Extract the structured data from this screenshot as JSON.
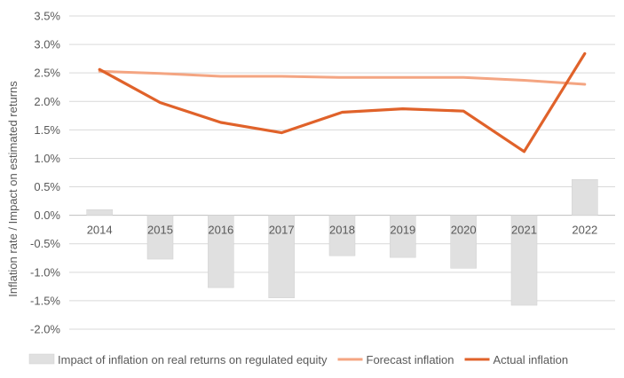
{
  "chart_data": {
    "type": "bar+line",
    "ylabel": "Inflation rate  /  Impact on estimated returns",
    "ylim": [
      -2.0,
      3.5
    ],
    "ytick_step": 0.5,
    "ytick_labels": [
      "3.5%",
      "3.0%",
      "2.5%",
      "2.0%",
      "1.5%",
      "1.0%",
      "0.5%",
      "0.0%",
      "-0.5%",
      "-1.0%",
      "-1.5%",
      "-2.0%"
    ],
    "grid": true,
    "legend_position": "bottom",
    "categories": [
      "2014",
      "2015",
      "2016",
      "2017",
      "2018",
      "2019",
      "2020",
      "2021",
      "2022"
    ],
    "series": [
      {
        "name": "Impact of inflation on real returns on regulated equity",
        "kind": "bar",
        "color": "#e0e0e0",
        "values": [
          0.1,
          -0.77,
          -1.27,
          -1.45,
          -0.71,
          -0.74,
          -0.93,
          -1.58,
          0.63
        ]
      },
      {
        "name": "Forecast inflation",
        "kind": "line",
        "color": "#f4a582",
        "values": [
          2.53,
          2.49,
          2.44,
          2.44,
          2.42,
          2.42,
          2.42,
          2.37,
          2.3
        ]
      },
      {
        "name": "Actual inflation",
        "kind": "line",
        "color": "#e0622a",
        "values": [
          2.56,
          1.98,
          1.63,
          1.45,
          1.81,
          1.87,
          1.83,
          1.12,
          2.84
        ]
      }
    ]
  }
}
